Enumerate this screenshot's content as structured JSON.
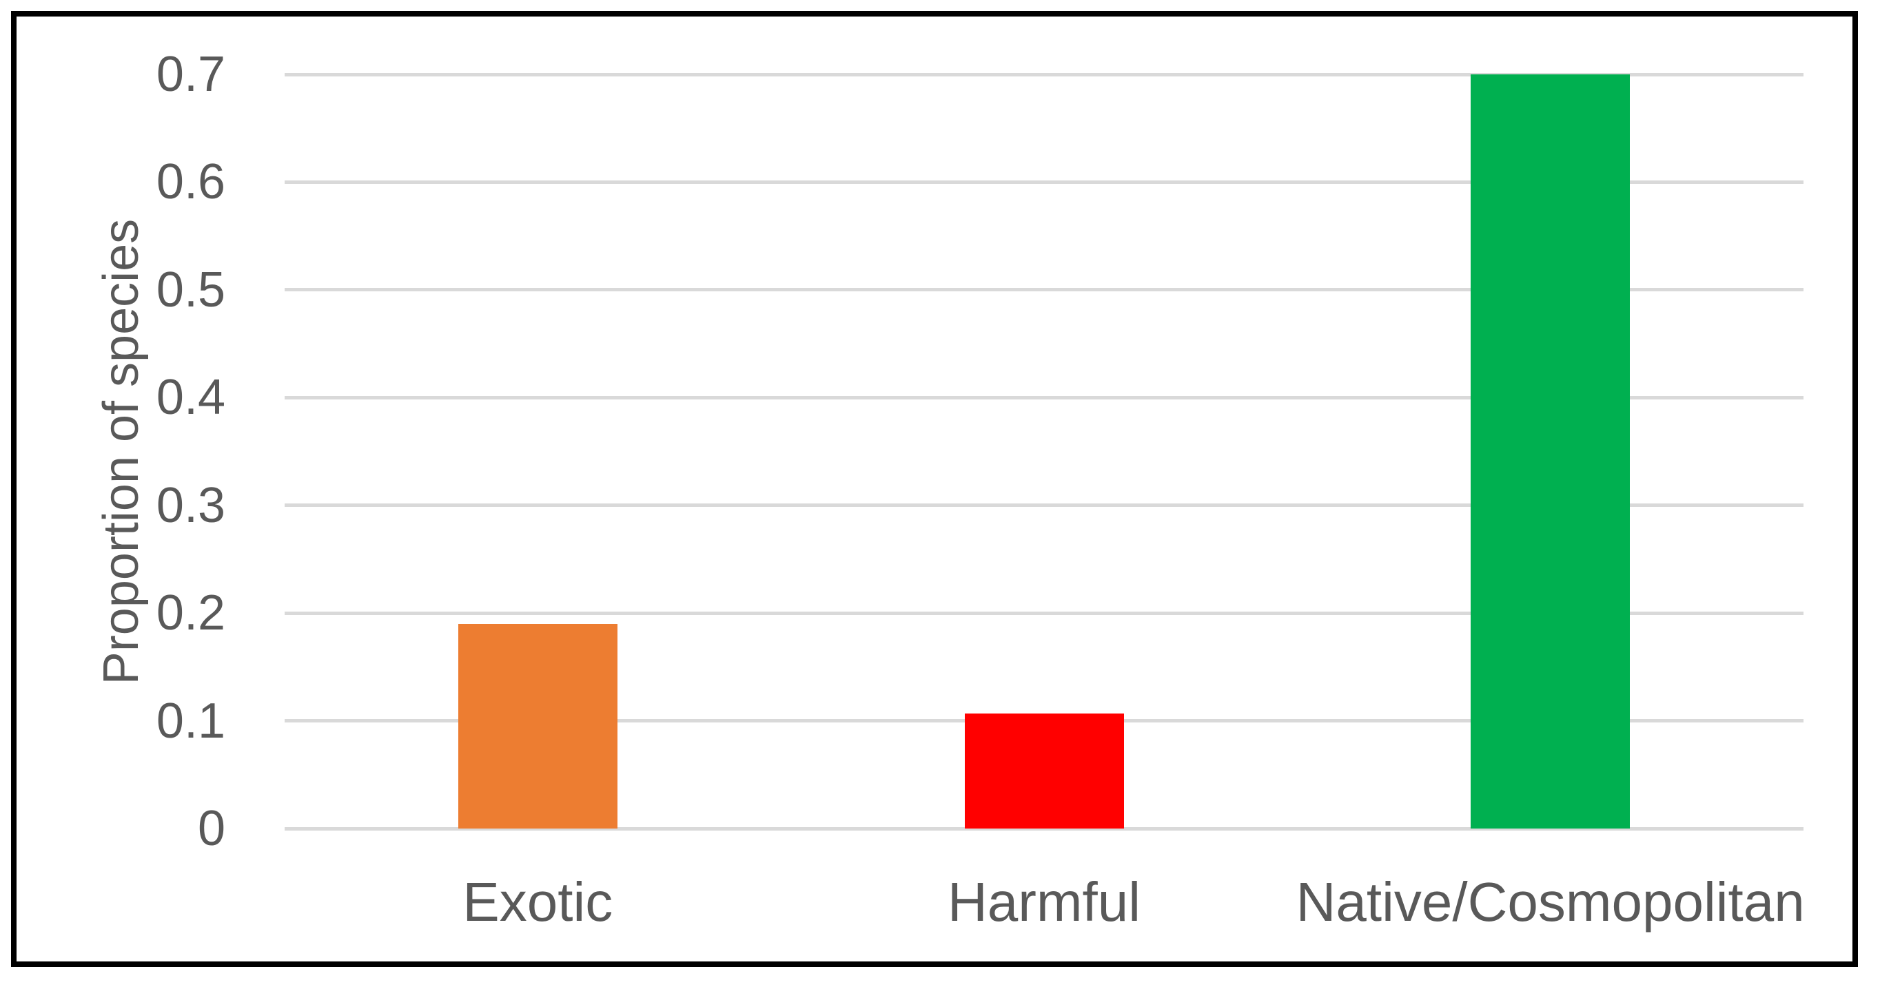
{
  "chart_data": {
    "type": "bar",
    "title": "",
    "categories": [
      "Exotic",
      "Harmful",
      "Native/Cosmopolitan"
    ],
    "values": [
      0.19,
      0.107,
      0.7
    ],
    "bar_colors": [
      "#ED7D31",
      "#FF0000",
      "#00B050"
    ],
    "xlabel": "",
    "ylabel": "Proportion of species",
    "ylim": [
      0,
      0.7
    ],
    "yticks": [
      0,
      0.1,
      0.2,
      0.3,
      0.4,
      0.5,
      0.6,
      0.7
    ],
    "ytick_labels": [
      "0",
      "0.1",
      "0.2",
      "0.3",
      "0.4",
      "0.5",
      "0.6",
      "0.7"
    ],
    "grid": "horizontal",
    "legend": "none",
    "colors": {
      "gridline": "#D9D9D9",
      "text": "#595959",
      "frame_border": "#000000",
      "background": "#FFFFFF"
    }
  }
}
